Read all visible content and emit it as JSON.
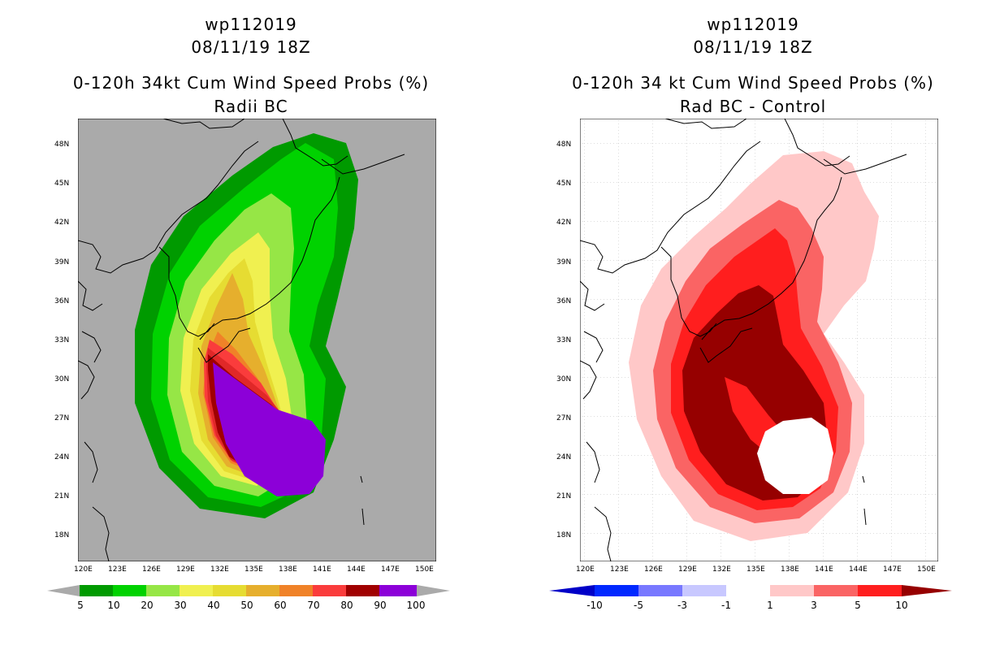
{
  "left": {
    "title_lines": [
      "wp112019",
      "08/11/19 18Z",
      "0-120h 34kt Cum Wind Speed Probs (%)",
      "Radii BC"
    ],
    "colorbar": {
      "labels": [
        "5",
        "10",
        "20",
        "30",
        "40",
        "50",
        "60",
        "70",
        "80",
        "90",
        "100"
      ],
      "colors": [
        "#009a00",
        "#00d200",
        "#00e600",
        "#96e646",
        "#f0f050",
        "#e6dc32",
        "#e6af2d",
        "#f08228",
        "#fa3c3c",
        "#a00000",
        "#8c00d8"
      ],
      "end_color": "#aaaaaa"
    },
    "background": "#aaaaaa"
  },
  "right": {
    "title_lines": [
      "wp112019",
      "08/11/19 18Z",
      "0-120h 34 kt Cum Wind Speed Probs (%)",
      "Rad BC - Control"
    ],
    "colorbar": {
      "labels": [
        "-10",
        "-5",
        "-3",
        "-1",
        "1",
        "3",
        "5",
        "10"
      ],
      "colors": [
        "#0000c8",
        "#0028ff",
        "#7878ff",
        "#c8c8ff",
        "#ffffff",
        "#ffc8c8",
        "#fa6464",
        "#ff1e1e",
        "#960000"
      ]
    },
    "background": "#ffffff"
  },
  "axes": {
    "lon_labels": [
      "120E",
      "123E",
      "126E",
      "129E",
      "132E",
      "135E",
      "138E",
      "141E",
      "144E",
      "147E",
      "150E"
    ],
    "lat_labels": [
      "48N",
      "45N",
      "42N",
      "39N",
      "36N",
      "33N",
      "30N",
      "27N",
      "24N",
      "21N",
      "18N"
    ]
  }
}
